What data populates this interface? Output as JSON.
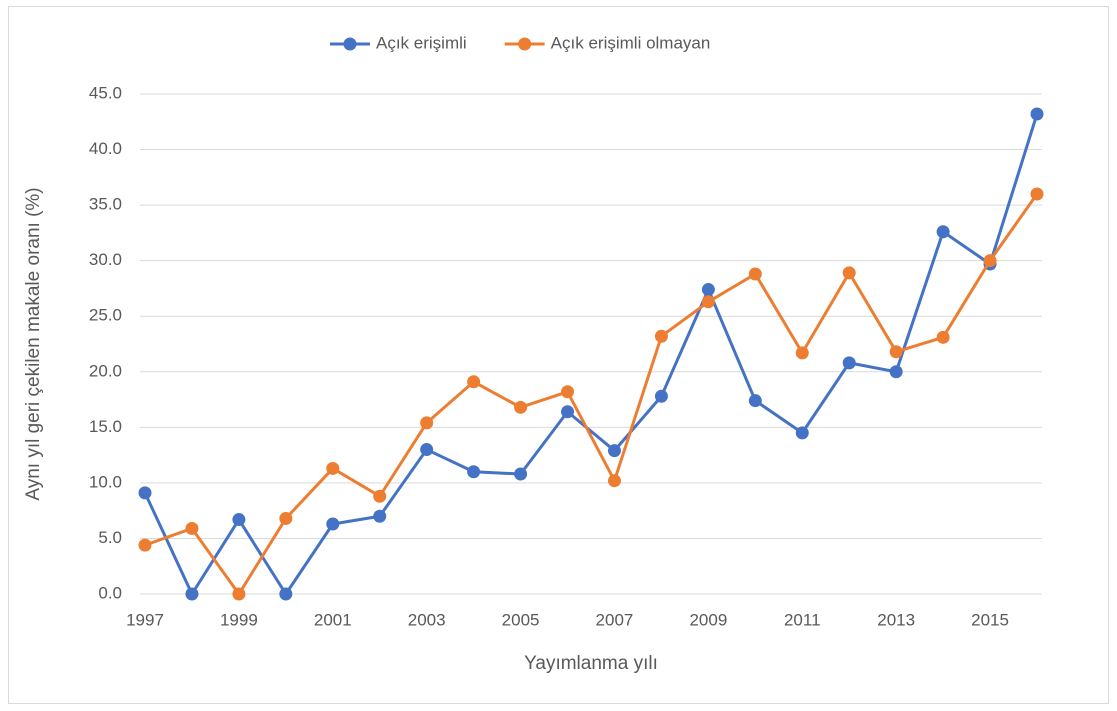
{
  "chart_data": {
    "type": "line",
    "y_label": "Aynı yıl geri çekilen makale oranı (%)",
    "x_label": "Yayımlanma yılı",
    "categories": [
      "1997",
      null,
      "1999",
      null,
      "2001",
      null,
      "2003",
      null,
      "2005",
      null,
      "2007",
      null,
      "2009",
      null,
      "2011",
      null,
      "2013",
      null,
      "2015",
      null
    ],
    "series": [
      {
        "name": "Açık erişimli",
        "color": "#4472c4",
        "values": [
          9.1,
          0,
          6.7,
          0,
          6.3,
          7.0,
          13.0,
          11.0,
          10.8,
          16.4,
          12.9,
          17.8,
          27.4,
          17.4,
          14.5,
          20.8,
          20.0,
          32.6,
          29.7,
          43.2
        ]
      },
      {
        "name": "Açık erişimli olmayan",
        "color": "#ed7d31",
        "values": [
          4.4,
          5.9,
          0,
          6.8,
          11.3,
          8.8,
          15.4,
          19.1,
          16.8,
          18.2,
          10.2,
          23.2,
          26.3,
          28.8,
          21.7,
          28.9,
          21.8,
          23.1,
          30.0,
          36.0
        ]
      }
    ],
    "ylim": [
      0,
      45
    ],
    "yticks": [
      {
        "value": 0,
        "label": "0.0"
      },
      {
        "value": 5,
        "label": "5.0"
      },
      {
        "value": 10,
        "label": "10.0"
      },
      {
        "value": 15,
        "label": "15.0"
      },
      {
        "value": 20,
        "label": "20.0"
      },
      {
        "value": 25,
        "label": "25.0"
      },
      {
        "value": 30,
        "label": "30.0"
      },
      {
        "value": 35,
        "label": "35.0"
      },
      {
        "value": 40,
        "label": "40.0"
      },
      {
        "value": 45,
        "label": "45.0"
      }
    ],
    "grid": true,
    "legend": "top"
  }
}
